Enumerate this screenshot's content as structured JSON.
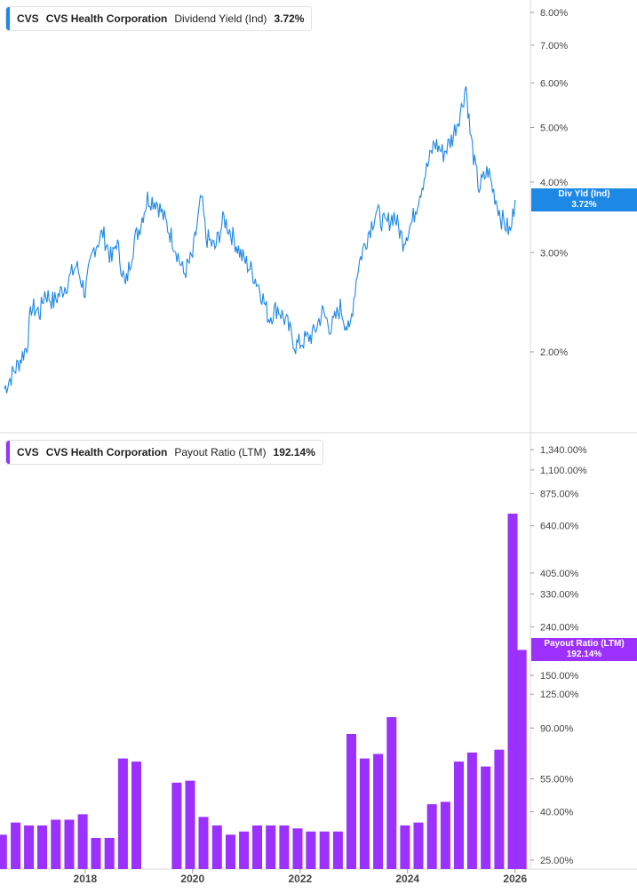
{
  "colors": {
    "yield": "#1e88e5",
    "payout": "#9b30ff",
    "axis_text": "#444444",
    "grid": "#d8d8d8"
  },
  "legend_top": {
    "ticker": "CVS",
    "company": "CVS Health Corporation",
    "metric": "Dividend Yield (Ind)",
    "value": "3.72%"
  },
  "legend_bottom": {
    "ticker": "CVS",
    "company": "CVS Health Corporation",
    "metric": "Payout Ratio (LTM)",
    "value": "192.14%"
  },
  "tag_top": {
    "label": "Div Yld (Ind)",
    "value": "3.72%"
  },
  "tag_bottom": {
    "label": "Payout Ratio (LTM)",
    "value": "192.14%"
  },
  "chart_data": [
    {
      "type": "line",
      "title": "CVS Health Corporation Dividend Yield (Ind)",
      "series": [
        {
          "name": "Dividend Yield (Ind)"
        }
      ],
      "y_scale": "log",
      "y_ticks": [
        {
          "value": 8.0,
          "label": "8.00%"
        },
        {
          "value": 7.0,
          "label": "7.00%"
        },
        {
          "value": 6.0,
          "label": "6.00%"
        },
        {
          "value": 5.0,
          "label": "5.00%"
        },
        {
          "value": 4.0,
          "label": "4.00%"
        },
        {
          "value": 3.0,
          "label": "3.00%"
        },
        {
          "value": 2.0,
          "label": "2.00%"
        }
      ],
      "points": [
        [
          "2016-07-01",
          1.72
        ],
        [
          "2016-10-01",
          1.9
        ],
        [
          "2016-12-01",
          2.05
        ],
        [
          "2017-01-01",
          2.4
        ],
        [
          "2017-03-01",
          2.35
        ],
        [
          "2017-04-01",
          2.55
        ],
        [
          "2017-06-01",
          2.45
        ],
        [
          "2017-09-01",
          2.65
        ],
        [
          "2017-11-01",
          2.85
        ],
        [
          "2018-01-01",
          2.55
        ],
        [
          "2018-03-01",
          3.05
        ],
        [
          "2018-05-01",
          3.25
        ],
        [
          "2018-07-01",
          2.9
        ],
        [
          "2018-08-01",
          3.15
        ],
        [
          "2018-10-01",
          2.6
        ],
        [
          "2018-12-01",
          3.15
        ],
        [
          "2019-01-01",
          3.3
        ],
        [
          "2019-03-01",
          3.75
        ],
        [
          "2019-05-01",
          3.7
        ],
        [
          "2019-07-01",
          3.4
        ],
        [
          "2019-09-01",
          3.1
        ],
        [
          "2019-11-01",
          2.75
        ],
        [
          "2020-01-01",
          2.95
        ],
        [
          "2020-03-01",
          3.75
        ],
        [
          "2020-04-01",
          3.2
        ],
        [
          "2020-06-01",
          3.05
        ],
        [
          "2020-08-01",
          3.45
        ],
        [
          "2020-10-01",
          3.2
        ],
        [
          "2020-12-01",
          2.95
        ],
        [
          "2021-02-01",
          2.8
        ],
        [
          "2021-04-01",
          2.6
        ],
        [
          "2021-06-01",
          2.3
        ],
        [
          "2021-08-01",
          2.4
        ],
        [
          "2021-10-01",
          2.25
        ],
        [
          "2021-12-01",
          2.05
        ],
        [
          "2022-02-01",
          2.1
        ],
        [
          "2022-04-01",
          2.15
        ],
        [
          "2022-06-01",
          2.35
        ],
        [
          "2022-08-01",
          2.2
        ],
        [
          "2022-10-01",
          2.4
        ],
        [
          "2022-12-01",
          2.15
        ],
        [
          "2023-02-01",
          2.85
        ],
        [
          "2023-04-01",
          3.2
        ],
        [
          "2023-06-01",
          3.55
        ],
        [
          "2023-08-01",
          3.35
        ],
        [
          "2023-10-01",
          3.5
        ],
        [
          "2023-12-01",
          3.15
        ],
        [
          "2024-02-01",
          3.4
        ],
        [
          "2024-04-01",
          3.9
        ],
        [
          "2024-06-01",
          4.4
        ],
        [
          "2024-07-01",
          4.7
        ],
        [
          "2024-09-01",
          4.5
        ],
        [
          "2024-11-01",
          4.8
        ],
        [
          "2025-01-01",
          5.4
        ],
        [
          "2025-02-01",
          5.95
        ],
        [
          "2025-03-01",
          4.9
        ],
        [
          "2025-04-01",
          4.3
        ],
        [
          "2025-05-01",
          3.9
        ],
        [
          "2025-07-01",
          4.2
        ],
        [
          "2025-08-01",
          3.9
        ],
        [
          "2025-10-01",
          3.45
        ],
        [
          "2025-12-01",
          3.25
        ],
        [
          "2026-01-01",
          3.72
        ]
      ]
    },
    {
      "type": "bar",
      "title": "CVS Health Corporation Payout Ratio (LTM)",
      "series": [
        {
          "name": "Payout Ratio (LTM)"
        }
      ],
      "y_scale": "log",
      "y_ticks": [
        {
          "value": 1340,
          "label": "1,340.00%"
        },
        {
          "value": 1100,
          "label": "1,100.00%"
        },
        {
          "value": 875,
          "label": "875.00%"
        },
        {
          "value": 640,
          "label": "640.00%"
        },
        {
          "value": 405,
          "label": "405.00%"
        },
        {
          "value": 330,
          "label": "330.00%"
        },
        {
          "value": 240,
          "label": "240.00%"
        },
        {
          "value": 150,
          "label": "150.00%"
        },
        {
          "value": 125,
          "label": "125.00%"
        },
        {
          "value": 90,
          "label": "90.00%"
        },
        {
          "value": 55,
          "label": "55.00%"
        },
        {
          "value": 40,
          "label": "40.00%"
        },
        {
          "value": 25,
          "label": "25.00%"
        }
      ],
      "bars": [
        [
          "2016-06-15",
          32
        ],
        [
          "2016-09-15",
          36
        ],
        [
          "2016-12-15",
          35
        ],
        [
          "2017-03-15",
          35
        ],
        [
          "2017-06-15",
          37
        ],
        [
          "2017-09-15",
          37
        ],
        [
          "2017-12-15",
          39
        ],
        [
          "2018-03-15",
          31
        ],
        [
          "2018-06-15",
          31
        ],
        [
          "2018-09-15",
          67
        ],
        [
          "2018-12-15",
          65
        ],
        [
          "2019-03-15",
          null
        ],
        [
          "2019-06-15",
          null
        ],
        [
          "2019-09-15",
          53
        ],
        [
          "2019-12-15",
          54
        ],
        [
          "2020-03-15",
          38
        ],
        [
          "2020-06-15",
          35
        ],
        [
          "2020-09-15",
          32
        ],
        [
          "2020-12-15",
          33
        ],
        [
          "2021-03-15",
          35
        ],
        [
          "2021-06-15",
          35
        ],
        [
          "2021-09-15",
          35
        ],
        [
          "2021-12-15",
          34
        ],
        [
          "2022-03-15",
          33
        ],
        [
          "2022-06-15",
          33
        ],
        [
          "2022-09-15",
          33
        ],
        [
          "2022-12-15",
          85
        ],
        [
          "2023-03-15",
          67
        ],
        [
          "2023-06-15",
          70
        ],
        [
          "2023-09-15",
          100
        ],
        [
          "2023-12-15",
          35
        ],
        [
          "2024-03-15",
          36
        ],
        [
          "2024-06-15",
          43
        ],
        [
          "2024-09-15",
          44
        ],
        [
          "2024-12-15",
          65
        ],
        [
          "2025-03-15",
          71
        ],
        [
          "2025-06-15",
          62
        ],
        [
          "2025-09-15",
          73
        ],
        [
          "2025-12-15",
          720
        ],
        [
          "2026-02-15",
          192.14
        ]
      ]
    }
  ],
  "x_axis": {
    "ticks": [
      {
        "date": "2018-01-01",
        "label": "2018"
      },
      {
        "date": "2020-01-01",
        "label": "2020"
      },
      {
        "date": "2022-01-01",
        "label": "2022"
      },
      {
        "date": "2024-01-01",
        "label": "2024"
      },
      {
        "date": "2026-01-01",
        "label": "2026"
      }
    ]
  }
}
